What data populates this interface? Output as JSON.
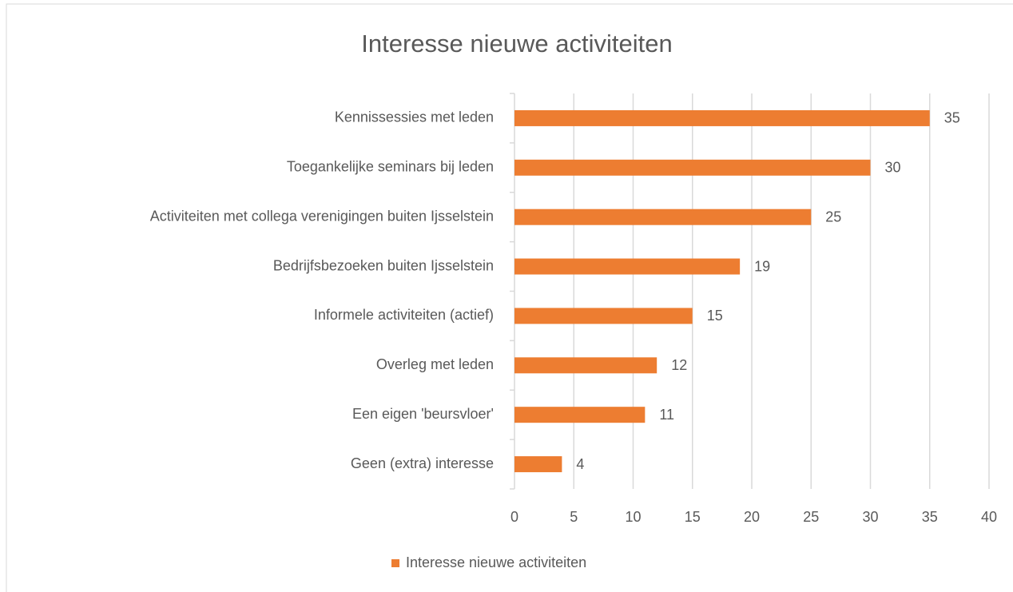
{
  "chart_data": {
    "type": "bar",
    "orientation": "horizontal",
    "title": "Interesse nieuwe activiteiten",
    "categories": [
      "Kennissessies met leden",
      "Toegankelijke seminars bij leden",
      "Activiteiten met collega verenigingen buiten Ijsselstein",
      "Bedrijfsbezoeken buiten Ijsselstein",
      "Informele activiteiten (actief)",
      "Overleg met leden",
      "Een eigen 'beursvloer'",
      "Geen (extra) interesse"
    ],
    "series": [
      {
        "name": "Interesse nieuwe activiteiten",
        "color": "#ed7d31",
        "values": [
          35,
          30,
          25,
          19,
          15,
          12,
          11,
          4
        ]
      }
    ],
    "xlim": [
      0,
      40
    ],
    "xticks": [
      0,
      5,
      10,
      15,
      20,
      25,
      30,
      35,
      40
    ],
    "grid": true,
    "legend": "bottom"
  }
}
